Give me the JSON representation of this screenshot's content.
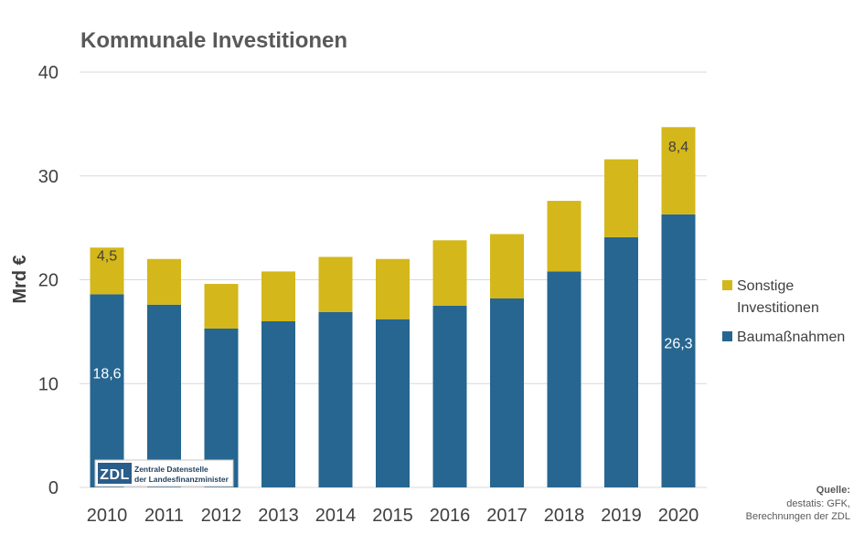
{
  "chart_data": {
    "type": "bar",
    "stacked": true,
    "title": "Kommunale Investitionen",
    "ylabel": "Mrd €",
    "xlabel": "",
    "ylim": [
      0,
      40
    ],
    "yticks": [
      0,
      10,
      20,
      30,
      40
    ],
    "grid": true,
    "legend_position": "right",
    "categories": [
      "2010",
      "2011",
      "2012",
      "2013",
      "2014",
      "2015",
      "2016",
      "2017",
      "2018",
      "2019",
      "2020"
    ],
    "series": [
      {
        "name": "Baumaßnahmen",
        "color": "#266690",
        "values": [
          18.6,
          17.6,
          15.3,
          16.0,
          16.9,
          16.2,
          17.5,
          18.2,
          20.8,
          24.1,
          26.3
        ],
        "data_labels": {
          "0": "18,6",
          "10": "26,3"
        },
        "label_color": "#ffffff"
      },
      {
        "name": "Sonstige Investitionen",
        "name_lines": [
          "Sonstige",
          "Investitionen"
        ],
        "color": "#D4B71A",
        "values": [
          4.5,
          4.4,
          4.3,
          4.8,
          5.3,
          5.8,
          6.3,
          6.2,
          6.8,
          7.5,
          8.4
        ],
        "data_labels": {
          "0": "4,5",
          "10": "8,4"
        },
        "label_color": "#404040"
      }
    ],
    "legend_order": [
      1,
      0
    ],
    "source": {
      "heading": "Quelle:",
      "lines": [
        "destatis: GFK,",
        "Berechnungen der ZDL"
      ]
    }
  },
  "logo": {
    "mark": "ZDL",
    "lines": [
      "Zentrale Datenstelle",
      "der Landesfinanzminister"
    ]
  }
}
